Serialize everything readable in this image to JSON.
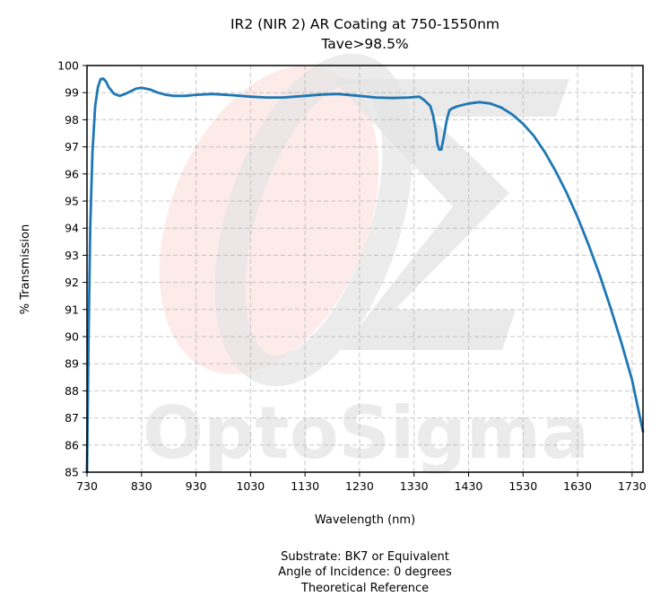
{
  "chart_data": {
    "type": "line",
    "title": "IR2 (NIR 2) AR Coating at 750-1550nm",
    "subtitle": "Tave>98.5%",
    "xlabel": "Wavelength (nm)",
    "ylabel": "% Transmission",
    "xlim": [
      730,
      1750
    ],
    "ylim": [
      85,
      100
    ],
    "x_ticks": [
      730,
      830,
      930,
      1030,
      1130,
      1230,
      1330,
      1430,
      1530,
      1630,
      1730
    ],
    "y_ticks": [
      85,
      86,
      87,
      88,
      89,
      90,
      91,
      92,
      93,
      94,
      95,
      96,
      97,
      98,
      99,
      100
    ],
    "grid": true,
    "line_color": "#1f77b4",
    "series": [
      {
        "x": [
          730,
          733,
          736,
          740,
          745,
          750,
          755,
          760,
          765,
          770,
          780,
          790,
          800,
          810,
          820,
          830,
          845,
          860,
          875,
          890,
          910,
          930,
          960,
          1000,
          1030,
          1060,
          1090,
          1130,
          1160,
          1190,
          1230,
          1260,
          1290,
          1320,
          1340,
          1350,
          1360,
          1365,
          1370,
          1373,
          1376,
          1380,
          1385,
          1390,
          1395,
          1400,
          1410,
          1430,
          1450,
          1470,
          1490,
          1510,
          1530,
          1550,
          1570,
          1590,
          1610,
          1630,
          1650,
          1670,
          1690,
          1710,
          1730,
          1750
        ],
        "y": [
          85.0,
          90.0,
          94.0,
          96.8,
          98.5,
          99.2,
          99.5,
          99.52,
          99.4,
          99.2,
          98.95,
          98.88,
          98.95,
          99.05,
          99.15,
          99.18,
          99.12,
          99.0,
          98.92,
          98.88,
          98.88,
          98.92,
          98.95,
          98.9,
          98.85,
          98.82,
          98.82,
          98.88,
          98.93,
          98.95,
          98.88,
          98.82,
          98.8,
          98.82,
          98.85,
          98.7,
          98.5,
          98.15,
          97.6,
          97.1,
          96.9,
          96.9,
          97.4,
          98.0,
          98.35,
          98.42,
          98.5,
          98.6,
          98.65,
          98.6,
          98.45,
          98.2,
          97.85,
          97.4,
          96.8,
          96.1,
          95.3,
          94.4,
          93.4,
          92.3,
          91.1,
          89.8,
          88.4,
          86.5
        ]
      }
    ],
    "annotations": [
      "Substrate: BK7 or Equivalent",
      "Angle of Incidence: 0 degrees",
      "Theoretical Reference"
    ],
    "watermark": "OptoSigma"
  }
}
